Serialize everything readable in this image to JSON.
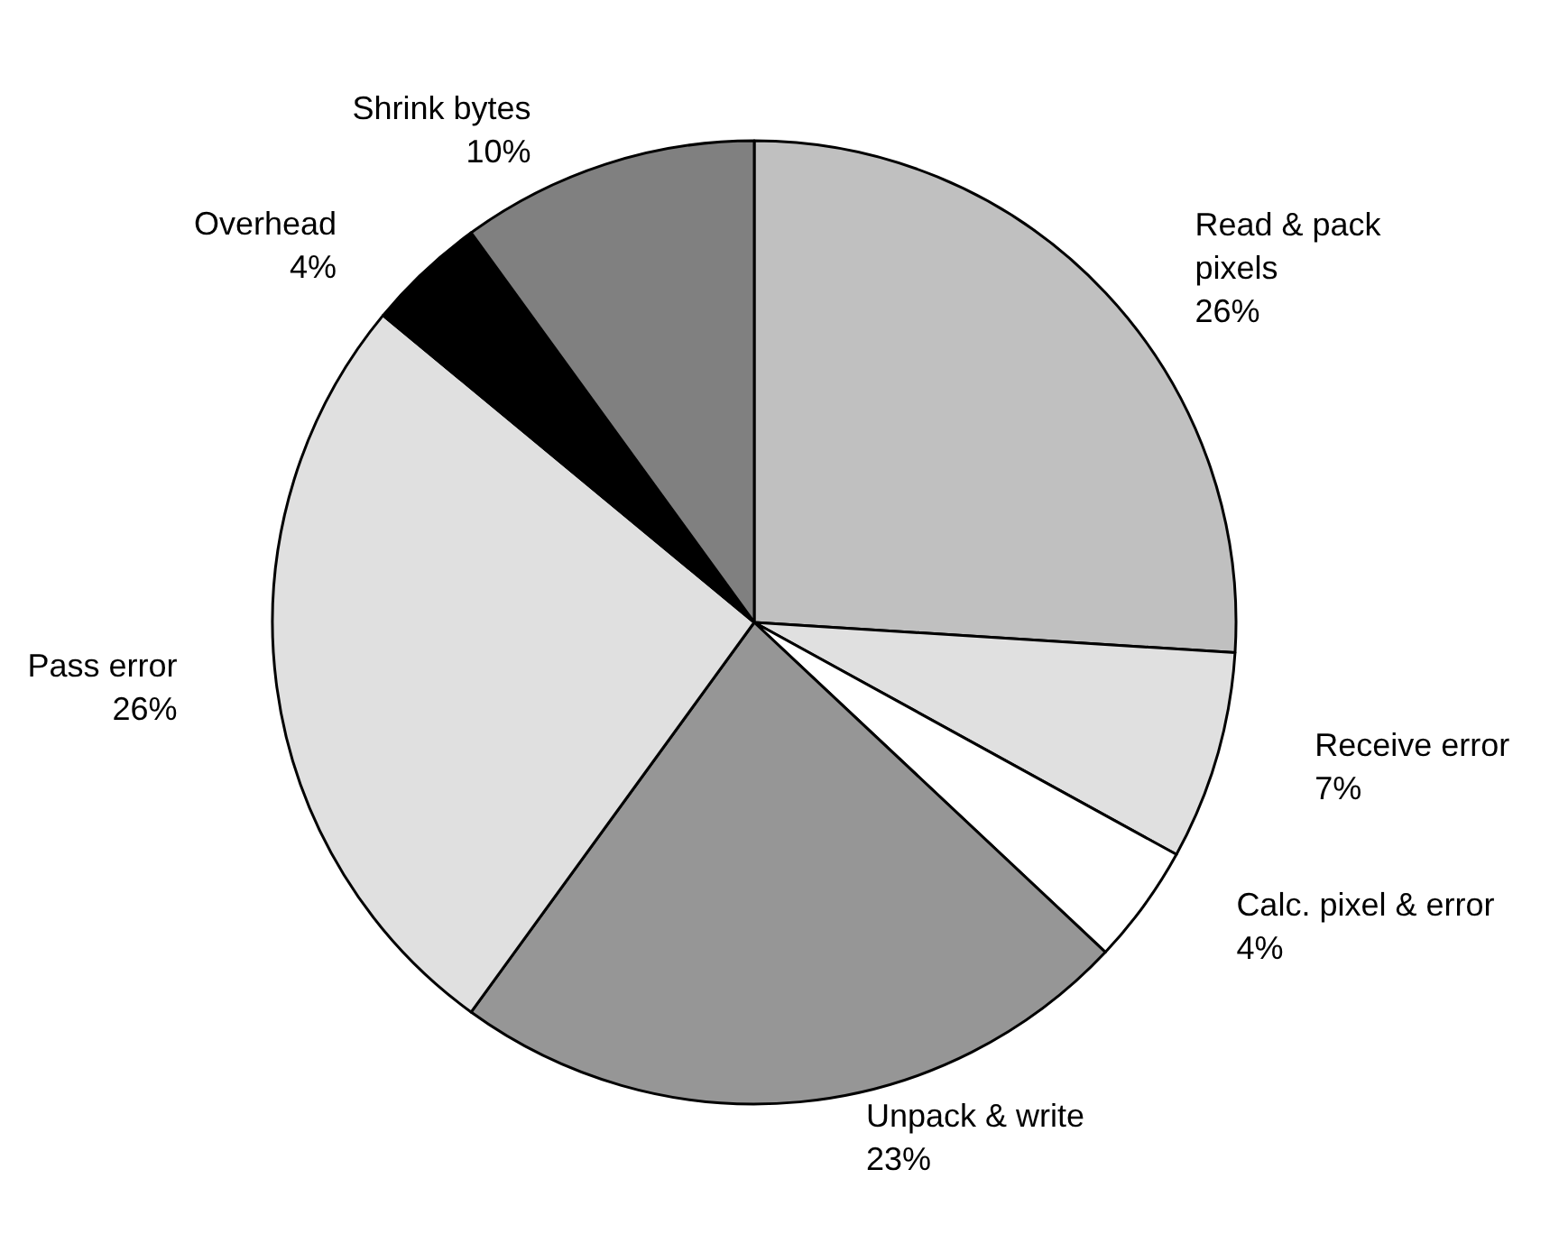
{
  "chart_data": {
    "type": "pie",
    "categories": [
      "Read & pack\npixels",
      "Receive error",
      "Calc. pixel & error",
      "Unpack & write",
      "Pass error",
      "Overhead",
      "Shrink bytes"
    ],
    "values": [
      26,
      7,
      4,
      23,
      26,
      4,
      10
    ],
    "value_labels": [
      "26%",
      "7%",
      "4%",
      "23%",
      "26%",
      "4%",
      "10%"
    ],
    "colors": [
      "#c0c0c0",
      "#e0e0e0",
      "#ffffff",
      "#969696",
      "#e0e0e0",
      "#000000",
      "#808080"
    ],
    "legend": false
  }
}
